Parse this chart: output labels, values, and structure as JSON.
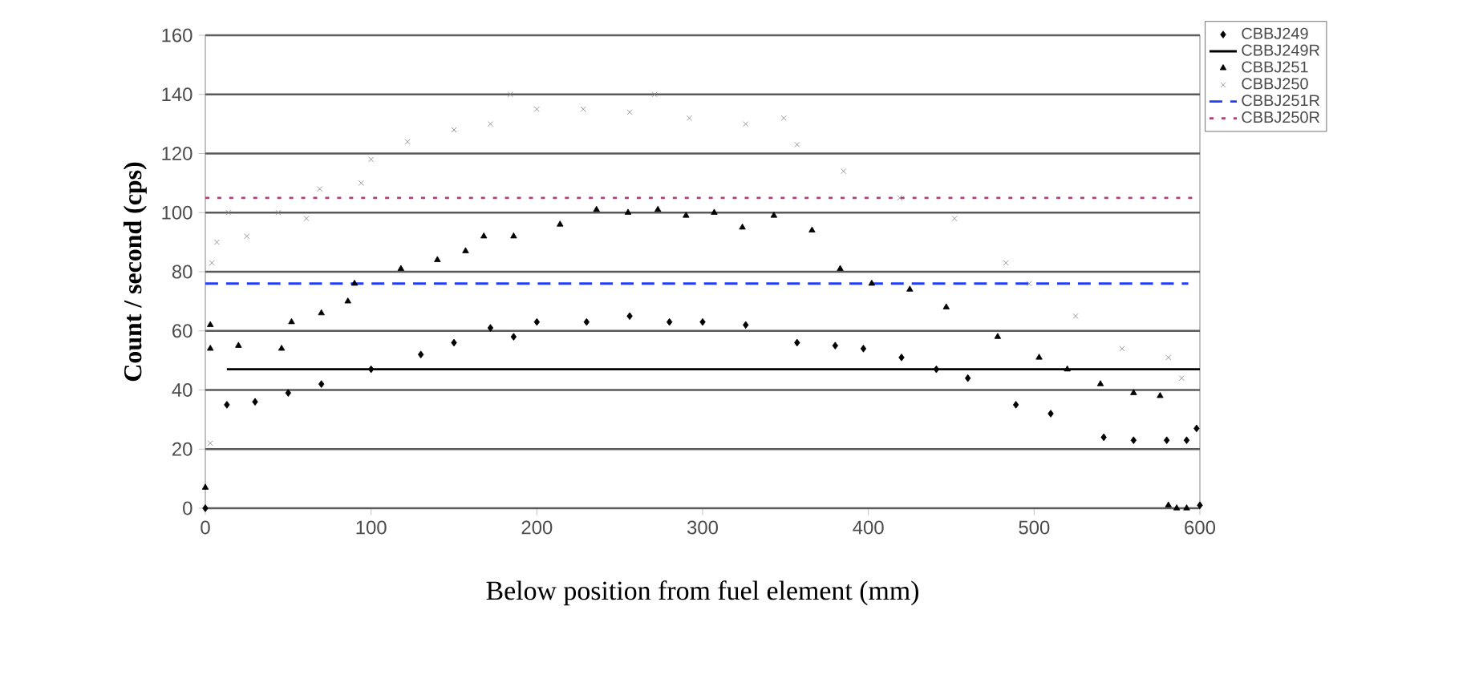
{
  "chart_data": {
    "type": "scatter",
    "xlabel": "Below position from fuel element (mm)",
    "ylabel": "Count / second (cps)",
    "xlim": [
      0,
      600
    ],
    "xticks": [
      0,
      100,
      200,
      300,
      400,
      500,
      600
    ],
    "ylim": [
      0,
      160
    ],
    "yticks": [
      0,
      20,
      40,
      60,
      80,
      100,
      120,
      140,
      160
    ],
    "grid": "y",
    "legend": "top right",
    "series": [
      {
        "name": "CBBJ249",
        "marker": "diamond",
        "color": "#000000",
        "x": [
          0,
          13,
          30,
          50,
          70,
          100,
          130,
          150,
          172,
          186,
          200,
          230,
          256,
          280,
          300,
          326,
          357,
          380,
          397,
          420,
          441,
          460,
          489,
          510,
          542,
          560,
          580,
          592,
          598,
          600
        ],
        "values": [
          0,
          35,
          36,
          39,
          42,
          47,
          52,
          56,
          61,
          58,
          63,
          63,
          65,
          63,
          63,
          62,
          56,
          55,
          54,
          51,
          47,
          44,
          35,
          32,
          24,
          23,
          23,
          23,
          27,
          1
        ]
      },
      {
        "name": "CBBJ249R",
        "type": "line",
        "line_style": "solid",
        "color": "#000000",
        "x": [
          13,
          600
        ],
        "values": [
          47,
          47
        ]
      },
      {
        "name": "CBBJ251",
        "marker": "triangle",
        "color": "#000000",
        "x": [
          0,
          3,
          3,
          20,
          46,
          52,
          70,
          86,
          90,
          118,
          140,
          157,
          168,
          186,
          214,
          236,
          255,
          273,
          290,
          307,
          324,
          343,
          366,
          383,
          402,
          425,
          447,
          478,
          503,
          520,
          540,
          560,
          576,
          581,
          586,
          592
        ],
        "values": [
          7,
          62,
          54,
          55,
          54,
          63,
          66,
          70,
          76,
          81,
          84,
          87,
          92,
          92,
          96,
          101,
          100,
          101,
          99,
          100,
          95,
          99,
          94,
          81,
          76,
          74,
          68,
          58,
          51,
          47,
          42,
          39,
          38,
          1,
          0,
          0
        ]
      },
      {
        "name": "CBBJ250",
        "marker": "cross",
        "color": "#808080",
        "x": [
          3,
          4,
          7,
          14,
          25,
          44,
          61,
          69,
          94,
          100,
          122,
          150,
          172,
          184,
          200,
          228,
          256,
          271,
          292,
          326,
          349,
          357,
          385,
          419,
          452,
          483,
          497,
          525,
          553,
          581,
          589
        ],
        "values": [
          22,
          83,
          90,
          100,
          92,
          100,
          98,
          108,
          110,
          118,
          124,
          128,
          130,
          140,
          135,
          135,
          134,
          140,
          132,
          130,
          132,
          123,
          114,
          105,
          98,
          83,
          76,
          65,
          54,
          51,
          44
        ]
      },
      {
        "name": "CBBJ251R",
        "type": "line",
        "line_style": "dashed",
        "color": "#1f3cff",
        "x": [
          0,
          593
        ],
        "values": [
          76,
          76
        ]
      },
      {
        "name": "CBBJ250R",
        "type": "line",
        "line_style": "dotted",
        "color": "#b0407a",
        "x": [
          0,
          600
        ],
        "values": [
          105,
          105
        ]
      }
    ]
  }
}
